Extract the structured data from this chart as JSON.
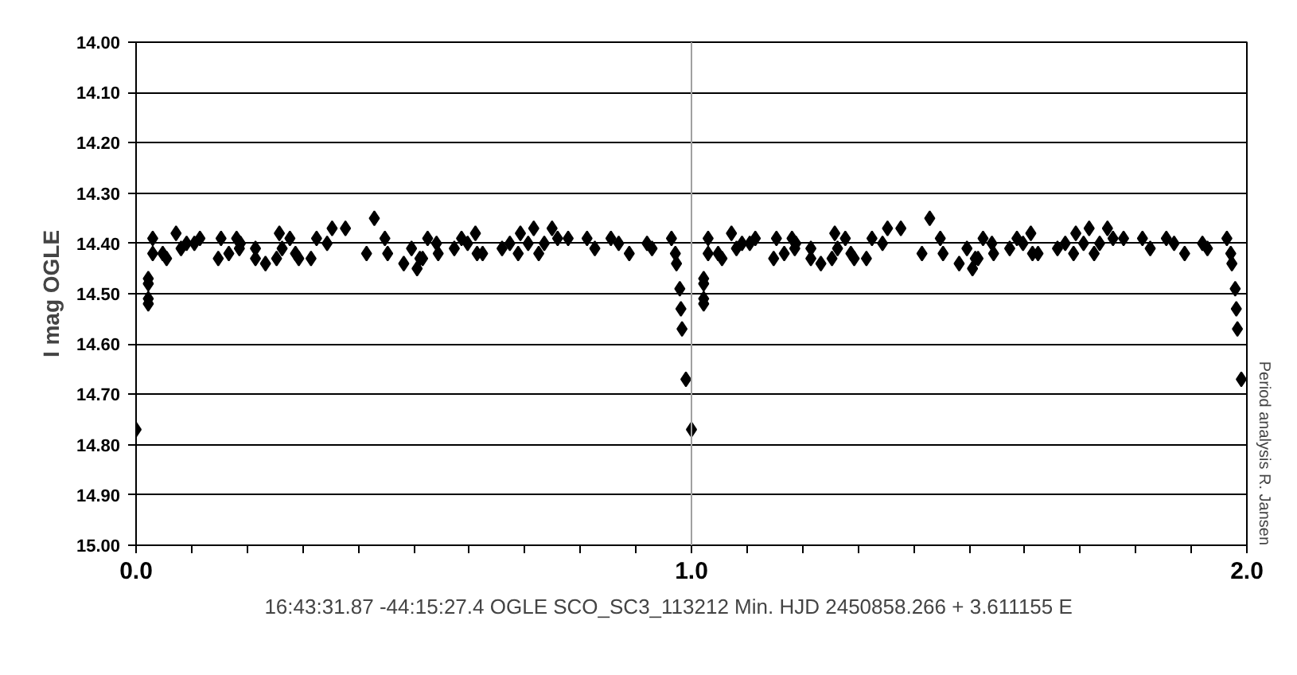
{
  "chart_data": {
    "type": "scatter",
    "ylabel": "I mag OGLE",
    "annotations": [
      "Period analysis R. Jansen",
      "16:43:31.87 -44:15:27.4     OGLE SCO_SC3_113212     Min. HJD 2450858.266 + 3.611155 E"
    ],
    "xlim": [
      0,
      2
    ],
    "ylim": [
      15.0,
      14.0
    ],
    "xticks": [
      {
        "value": 0,
        "label": "0.0"
      },
      {
        "value": 0.1,
        "label": null
      },
      {
        "value": 0.2,
        "label": null
      },
      {
        "value": 0.3,
        "label": null
      },
      {
        "value": 0.4,
        "label": null
      },
      {
        "value": 0.5,
        "label": null
      },
      {
        "value": 0.6,
        "label": null
      },
      {
        "value": 0.7,
        "label": null
      },
      {
        "value": 0.8,
        "label": null
      },
      {
        "value": 0.9,
        "label": null
      },
      {
        "value": 1,
        "label": "1.0"
      },
      {
        "value": 1.1,
        "label": null
      },
      {
        "value": 1.2,
        "label": null
      },
      {
        "value": 1.3,
        "label": null
      },
      {
        "value": 1.4,
        "label": null
      },
      {
        "value": 1.5,
        "label": null
      },
      {
        "value": 1.6,
        "label": null
      },
      {
        "value": 1.7,
        "label": null
      },
      {
        "value": 1.8,
        "label": null
      },
      {
        "value": 1.9,
        "label": null
      },
      {
        "value": 2,
        "label": "2.0"
      }
    ],
    "yticks": [
      {
        "value": 14.0,
        "label": "14.00"
      },
      {
        "value": 14.1,
        "label": "14.10"
      },
      {
        "value": 14.2,
        "label": "14.20"
      },
      {
        "value": 14.3,
        "label": "14.30"
      },
      {
        "value": 14.4,
        "label": "14.40"
      },
      {
        "value": 14.5,
        "label": "14.50"
      },
      {
        "value": 14.6,
        "label": "14.60"
      },
      {
        "value": 14.7,
        "label": "14.70"
      },
      {
        "value": 14.8,
        "label": "14.80"
      },
      {
        "value": 14.9,
        "label": "14.90"
      },
      {
        "value": 15.0,
        "label": "15.00"
      }
    ],
    "grid": "y",
    "marker": "diamond",
    "ref_lines": [
      {
        "axis": "x",
        "value": 1,
        "label": null,
        "color": "#a0a0a0"
      }
    ],
    "series": [
      {
        "color": "#000000",
        "x": [
          0.0,
          0.022,
          0.022,
          0.022,
          0.022,
          0.03,
          0.03,
          0.048,
          0.055,
          0.072,
          0.081,
          0.091,
          0.105,
          0.115,
          0.148,
          0.153,
          0.167,
          0.181,
          0.186,
          0.188,
          0.215,
          0.215,
          0.233,
          0.253,
          0.258,
          0.263,
          0.277,
          0.287,
          0.293,
          0.315,
          0.325,
          0.344,
          0.353,
          0.377,
          0.415,
          0.429,
          0.448,
          0.453,
          0.482,
          0.496,
          0.506,
          0.511,
          0.516,
          0.525,
          0.541,
          0.544,
          0.573,
          0.586,
          0.597,
          0.611,
          0.614,
          0.624,
          0.659,
          0.673,
          0.688,
          0.692,
          0.706,
          0.716,
          0.725,
          0.735,
          0.749,
          0.759,
          0.778,
          0.812,
          0.826,
          0.855,
          0.869,
          0.888,
          0.92,
          0.929,
          0.964,
          0.971,
          0.973,
          0.979,
          0.981,
          0.983,
          0.99,
          1.0,
          1.022,
          1.022,
          1.022,
          1.022,
          1.03,
          1.03,
          1.048,
          1.055,
          1.072,
          1.081,
          1.091,
          1.105,
          1.115,
          1.148,
          1.153,
          1.167,
          1.181,
          1.186,
          1.188,
          1.215,
          1.215,
          1.233,
          1.253,
          1.258,
          1.263,
          1.277,
          1.287,
          1.293,
          1.315,
          1.325,
          1.344,
          1.353,
          1.377,
          1.415,
          1.429,
          1.448,
          1.453,
          1.482,
          1.496,
          1.506,
          1.511,
          1.516,
          1.525,
          1.541,
          1.544,
          1.573,
          1.586,
          1.597,
          1.611,
          1.614,
          1.624,
          1.659,
          1.673,
          1.688,
          1.692,
          1.706,
          1.716,
          1.725,
          1.735,
          1.749,
          1.759,
          1.778,
          1.812,
          1.826,
          1.855,
          1.869,
          1.888,
          1.92,
          1.929,
          1.964,
          1.971,
          1.973,
          1.979,
          1.981,
          1.983,
          1.99
        ],
        "values": [
          14.77,
          14.51,
          14.52,
          14.47,
          14.48,
          14.39,
          14.42,
          14.42,
          14.43,
          14.38,
          14.41,
          14.4,
          14.4,
          14.39,
          14.43,
          14.39,
          14.42,
          14.39,
          14.41,
          14.4,
          14.41,
          14.43,
          14.44,
          14.43,
          14.38,
          14.41,
          14.39,
          14.42,
          14.43,
          14.43,
          14.39,
          14.4,
          14.37,
          14.37,
          14.42,
          14.35,
          14.39,
          14.42,
          14.44,
          14.41,
          14.45,
          14.43,
          14.43,
          14.39,
          14.4,
          14.42,
          14.41,
          14.39,
          14.4,
          14.38,
          14.42,
          14.42,
          14.41,
          14.4,
          14.42,
          14.38,
          14.4,
          14.37,
          14.42,
          14.4,
          14.37,
          14.39,
          14.39,
          14.39,
          14.41,
          14.39,
          14.4,
          14.42,
          14.4,
          14.41,
          14.39,
          14.42,
          14.44,
          14.49,
          14.53,
          14.57,
          14.67,
          14.77,
          14.51,
          14.52,
          14.47,
          14.48,
          14.39,
          14.42,
          14.42,
          14.43,
          14.38,
          14.41,
          14.4,
          14.4,
          14.39,
          14.43,
          14.39,
          14.42,
          14.39,
          14.41,
          14.4,
          14.41,
          14.43,
          14.44,
          14.43,
          14.38,
          14.41,
          14.39,
          14.42,
          14.43,
          14.43,
          14.39,
          14.4,
          14.37,
          14.37,
          14.42,
          14.35,
          14.39,
          14.42,
          14.44,
          14.41,
          14.45,
          14.43,
          14.43,
          14.39,
          14.4,
          14.42,
          14.41,
          14.39,
          14.4,
          14.38,
          14.42,
          14.42,
          14.41,
          14.4,
          14.42,
          14.38,
          14.4,
          14.37,
          14.42,
          14.4,
          14.37,
          14.39,
          14.39,
          14.39,
          14.41,
          14.39,
          14.4,
          14.42,
          14.4,
          14.41,
          14.39,
          14.42,
          14.44,
          14.49,
          14.53,
          14.57,
          14.67
        ]
      }
    ]
  }
}
